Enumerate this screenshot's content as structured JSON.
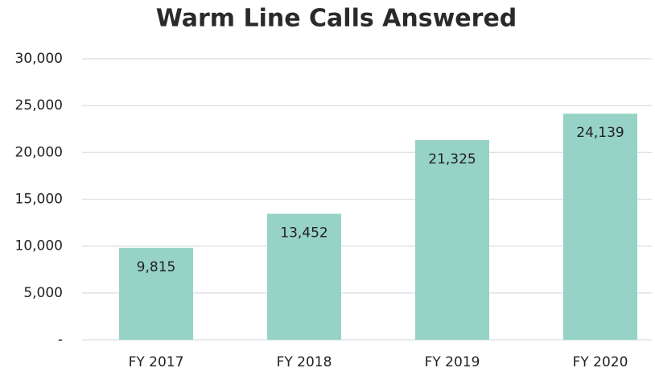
{
  "chart_data": {
    "type": "bar",
    "title": "Warm Line Calls Answered",
    "categories": [
      "FY 2017",
      "FY 2018",
      "FY 2019",
      "FY 2020"
    ],
    "values": [
      9815,
      13452,
      21325,
      24139
    ],
    "value_labels": [
      "9,815",
      "13,452",
      "21,325",
      "24,139"
    ],
    "color": "#96d3c6",
    "ylim": [
      0,
      30000
    ],
    "yticks": [
      {
        "value": 0,
        "label": "-"
      },
      {
        "value": 5000,
        "label": "5,000"
      },
      {
        "value": 10000,
        "label": "10,000"
      },
      {
        "value": 15000,
        "label": "15,000"
      },
      {
        "value": 20000,
        "label": "20,000"
      },
      {
        "value": 25000,
        "label": "25,000"
      },
      {
        "value": 30000,
        "label": "30,000"
      }
    ],
    "grid": true
  }
}
